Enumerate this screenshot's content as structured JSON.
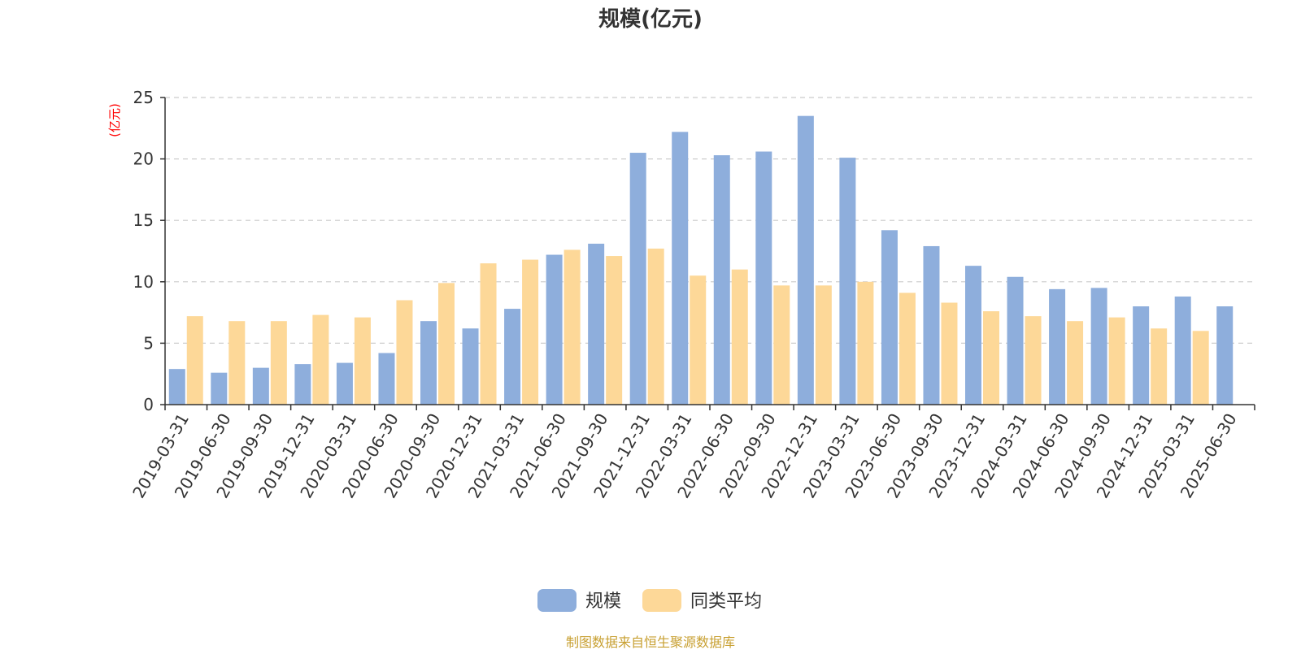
{
  "chart_data": {
    "type": "bar",
    "title": "规模(亿元)",
    "yunit": "(亿元)",
    "ylim": [
      0,
      25
    ],
    "yticks": [
      0,
      5,
      10,
      15,
      20,
      25
    ],
    "grid": true,
    "legend_position": "bottom-center",
    "categories": [
      "2019-03-31",
      "2019-06-30",
      "2019-09-30",
      "2019-12-31",
      "2020-03-31",
      "2020-06-30",
      "2020-09-30",
      "2020-12-31",
      "2021-03-31",
      "2021-06-30",
      "2021-09-30",
      "2021-12-31",
      "2022-03-31",
      "2022-06-30",
      "2022-09-30",
      "2022-12-31",
      "2023-03-31",
      "2023-06-30",
      "2023-09-30",
      "2023-12-31",
      "2024-03-31",
      "2024-06-30",
      "2024-09-30",
      "2024-12-31",
      "2025-03-31",
      "2025-06-30"
    ],
    "series": [
      {
        "name": "规模",
        "color": "#8eaedc",
        "values": [
          2.9,
          2.6,
          3.0,
          3.3,
          3.4,
          4.2,
          6.8,
          6.2,
          7.8,
          12.2,
          13.1,
          20.5,
          22.2,
          20.3,
          20.6,
          23.5,
          20.1,
          14.2,
          12.9,
          11.3,
          10.4,
          9.4,
          9.5,
          8.0,
          8.8,
          8.0
        ]
      },
      {
        "name": "同类平均",
        "color": "#fdd898",
        "values": [
          7.2,
          6.8,
          6.8,
          7.3,
          7.1,
          8.5,
          9.9,
          11.5,
          11.8,
          12.6,
          12.1,
          12.7,
          10.5,
          11.0,
          9.7,
          9.7,
          10.0,
          9.1,
          8.3,
          7.6,
          7.2,
          6.8,
          7.1,
          6.2,
          6.0,
          null
        ]
      }
    ]
  },
  "source": "制图数据来自恒生聚源数据库"
}
